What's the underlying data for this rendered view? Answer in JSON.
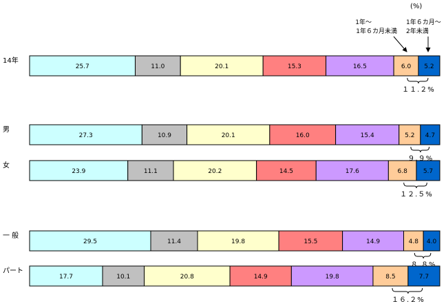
{
  "unit": "(%)",
  "chart_data": {
    "type": "bar",
    "stacked": true,
    "orientation": "horizontal",
    "categories": [
      "14年",
      "男",
      "女",
      "一 般",
      "パート"
    ],
    "segment_colors": [
      "#ccffff",
      "#c0c0c0",
      "#ffffcc",
      "#ff8080",
      "#cc99ff",
      "#ffcc99",
      "#0066cc"
    ],
    "series": [
      {
        "values": [
          25.7,
          27.3,
          23.9,
          29.5,
          17.7
        ]
      },
      {
        "values": [
          11.0,
          10.9,
          11.1,
          11.4,
          10.1
        ]
      },
      {
        "values": [
          20.1,
          20.1,
          20.2,
          19.8,
          20.8
        ]
      },
      {
        "values": [
          15.3,
          16.0,
          14.5,
          15.5,
          14.9
        ]
      },
      {
        "values": [
          16.5,
          15.4,
          17.6,
          14.9,
          19.8
        ]
      },
      {
        "values": [
          6.0,
          5.2,
          6.8,
          4.8,
          8.5
        ]
      },
      {
        "values": [
          5.2,
          4.7,
          5.7,
          4.0,
          7.7
        ]
      }
    ],
    "value_labels": [
      [
        "25.7",
        "11.0",
        "20.1",
        "15.3",
        "16.5",
        "6.0",
        "5.2"
      ],
      [
        "27.3",
        "10.9",
        "20.1",
        "16.0",
        "15.4",
        "5.2",
        "4.7"
      ],
      [
        "23.9",
        "11.1",
        "20.2",
        "14.5",
        "17.6",
        "6.8",
        "5.7"
      ],
      [
        "29.5",
        "11.4",
        "19.8",
        "15.5",
        "14.9",
        "4.8",
        "4.0"
      ],
      [
        "17.7",
        "10.1",
        "20.8",
        "14.9",
        "19.8",
        "8.5",
        "7.7"
      ]
    ],
    "combined_labels": [
      "１１.２%",
      "９.９%",
      "１２.５%",
      "８.８%",
      "１６.２%"
    ],
    "annotations": {
      "seg6_line1": "1年～",
      "seg6_line2": "1年６カ月未満",
      "seg7_line1": "1年６カ月～",
      "seg7_line2": "2年未満"
    }
  }
}
